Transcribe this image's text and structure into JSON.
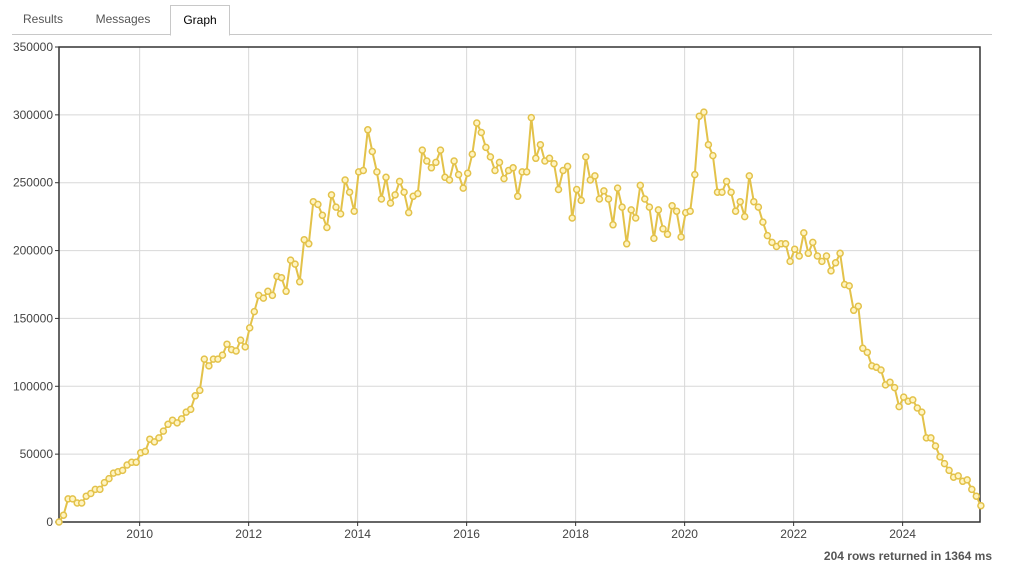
{
  "tabs": [
    {
      "label": "Results",
      "active": false
    },
    {
      "label": "Messages",
      "active": false
    },
    {
      "label": "Graph",
      "active": true
    }
  ],
  "status": "204 rows returned in 1364 ms",
  "colors": {
    "line": "#e3c24a",
    "marker_fill": "#fff4c2",
    "grid": "#d8d8d8",
    "frame": "#333333"
  },
  "chart_data": {
    "type": "line",
    "title": "",
    "xlabel": "",
    "ylabel": "",
    "xlim": [
      2008.52,
      2025.42
    ],
    "ylim": [
      0,
      350000
    ],
    "x_ticks": [
      "2010",
      "2012",
      "2014",
      "2016",
      "2018",
      "2020",
      "2022",
      "2024"
    ],
    "y_ticks": [
      "0",
      "50000",
      "100000",
      "150000",
      "200000",
      "250000",
      "300000",
      "350000"
    ],
    "grid": true,
    "legend": "none",
    "x_start": 2008.52,
    "x_step": 0.08333,
    "series": [
      {
        "values": [
          0,
          5000,
          17000,
          17000,
          14000,
          14000,
          19000,
          21000,
          24000,
          24000,
          29000,
          32000,
          36000,
          37000,
          38000,
          42000,
          44000,
          44000,
          51000,
          52000,
          61000,
          59000,
          62000,
          67000,
          72000,
          75000,
          73000,
          76000,
          81000,
          83000,
          93000,
          97000,
          120000,
          115000,
          120000,
          120000,
          123000,
          131000,
          127000,
          126000,
          134000,
          129000,
          143000,
          155000,
          167000,
          165000,
          170000,
          167000,
          181000,
          180000,
          170000,
          193000,
          190000,
          177000,
          208000,
          205000,
          236000,
          234000,
          226000,
          217000,
          241000,
          232000,
          227000,
          252000,
          243000,
          229000,
          258000,
          259000,
          289000,
          273000,
          258000,
          238000,
          254000,
          235000,
          241000,
          251000,
          243000,
          228000,
          240000,
          242000,
          274000,
          266000,
          261000,
          265000,
          274000,
          254000,
          252000,
          266000,
          256000,
          246000,
          257000,
          271000,
          294000,
          287000,
          276000,
          269000,
          259000,
          265000,
          253000,
          259000,
          261000,
          240000,
          258000,
          258000,
          298000,
          268000,
          278000,
          266000,
          268000,
          264000,
          245000,
          259000,
          262000,
          224000,
          245000,
          237000,
          269000,
          252000,
          255000,
          238000,
          244000,
          238000,
          219000,
          246000,
          232000,
          205000,
          230000,
          224000,
          248000,
          238000,
          232000,
          209000,
          230000,
          216000,
          212000,
          233000,
          229000,
          210000,
          228000,
          229000,
          256000,
          299000,
          302000,
          278000,
          270000,
          243000,
          243000,
          251000,
          243000,
          229000,
          236000,
          225000,
          255000,
          236000,
          232000,
          221000,
          211000,
          206000,
          203000,
          205000,
          205000,
          192000,
          201000,
          196000,
          213000,
          198000,
          206000,
          196000,
          192000,
          196000,
          185000,
          191000,
          198000,
          175000,
          174000,
          156000,
          159000,
          128000,
          125000,
          115000,
          114000,
          112000,
          101000,
          103000,
          99000,
          85000,
          92000,
          89000,
          90000,
          84000,
          81000,
          62000,
          62000,
          56000,
          48000,
          43000,
          38000,
          33000,
          34000,
          30000,
          31000,
          24000,
          19000,
          12000
        ]
      }
    ]
  }
}
